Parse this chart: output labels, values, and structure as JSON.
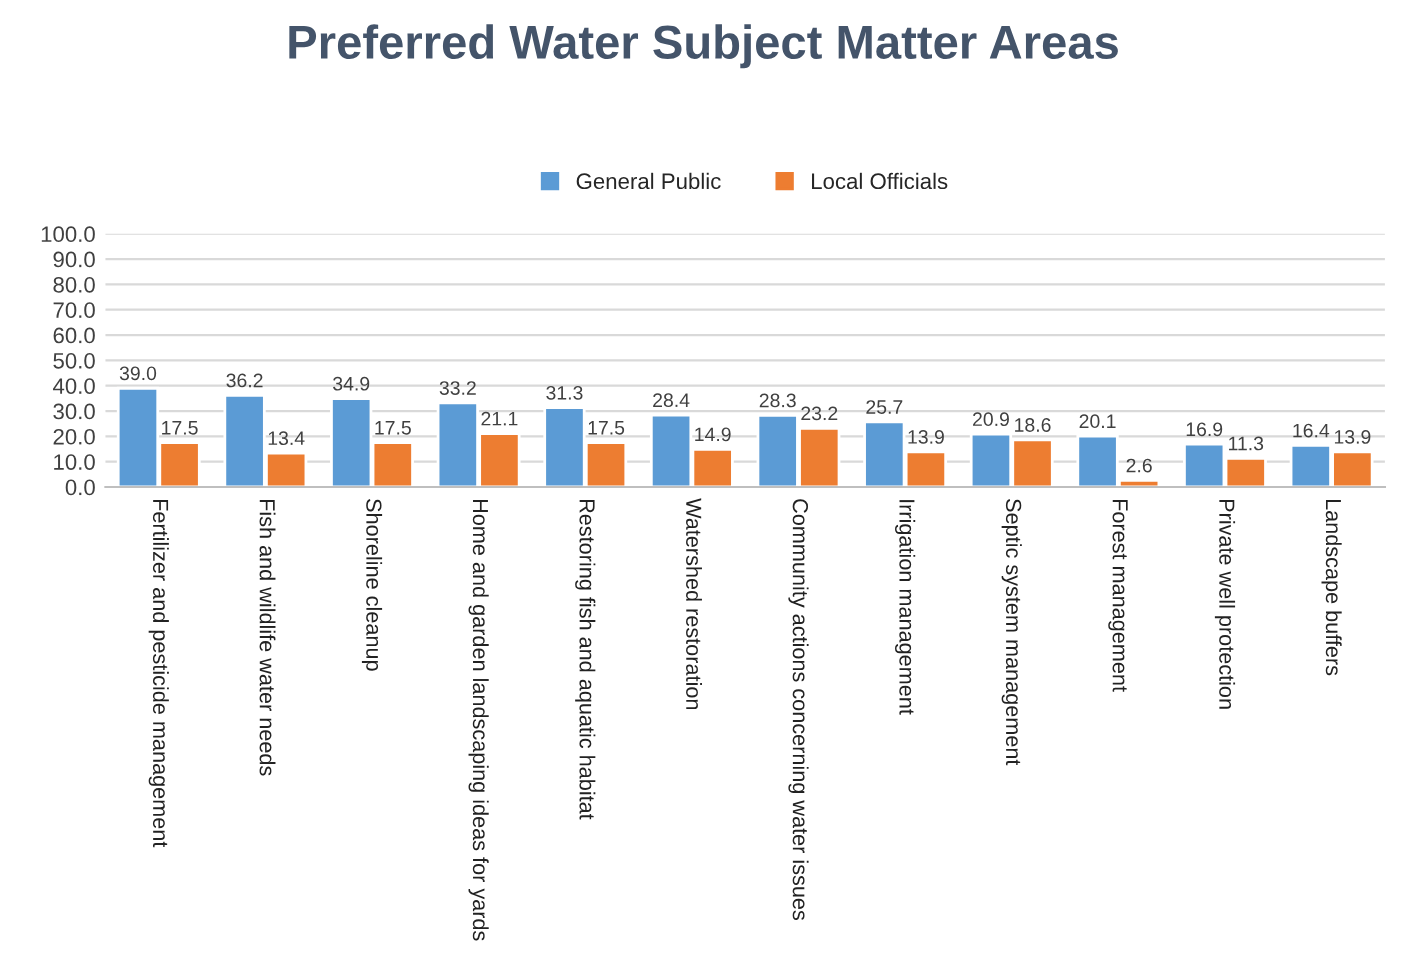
{
  "chart_data": {
    "type": "bar",
    "title": "Preferred Water Subject Matter Areas",
    "categories": [
      "Fertilizer and pesticide management",
      "Fish and wildlife water needs",
      "Shoreline cleanup",
      "Home and garden landscaping ideas for yards",
      "Restoring fish and aquatic habitat",
      "Watershed restoration",
      "Community actions concerning water issues",
      "Irrigation management",
      "Septic system management",
      "Forest management",
      "Private well protection",
      "Landscape buffers"
    ],
    "series": [
      {
        "name": "General Public",
        "color": "#5b9bd5",
        "values": [
          39.0,
          36.2,
          34.9,
          33.2,
          31.3,
          28.4,
          28.3,
          25.7,
          20.9,
          20.1,
          16.9,
          16.4
        ],
        "value_labels": [
          "39.0",
          "36.2",
          "34.9",
          "33.2",
          "31.3",
          "28.4",
          "28.3",
          "25.7",
          "20.9",
          "20.1",
          "16.9",
          "16.4"
        ]
      },
      {
        "name": "Local Officials",
        "color": "#ed7d31",
        "values": [
          17.5,
          13.4,
          17.5,
          21.1,
          17.5,
          14.9,
          23.2,
          13.9,
          18.6,
          2.6,
          11.3,
          13.9
        ],
        "value_labels": [
          "17.5",
          "13.4",
          "17.5",
          "21.1",
          "17.5",
          "14.9",
          "23.2",
          "13.9",
          "18.6",
          "2.6",
          "11.3",
          "13.9"
        ]
      }
    ],
    "ylim": [
      0,
      100
    ],
    "yticks": [
      {
        "value": 0,
        "label": "0.0"
      },
      {
        "value": 10,
        "label": "10.0"
      },
      {
        "value": 20,
        "label": "20.0"
      },
      {
        "value": 30,
        "label": "30.0"
      },
      {
        "value": 40,
        "label": "40.0"
      },
      {
        "value": 50,
        "label": "50.0"
      },
      {
        "value": 60,
        "label": "60.0"
      },
      {
        "value": 70,
        "label": "70.0"
      },
      {
        "value": 80,
        "label": "80.0"
      },
      {
        "value": 90,
        "label": "90.0"
      },
      {
        "value": 100,
        "label": "100.0"
      }
    ],
    "grid": "y",
    "legend": "top"
  }
}
